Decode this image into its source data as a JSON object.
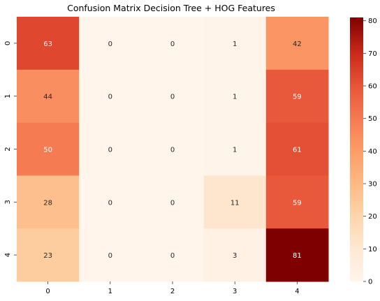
{
  "chart_data": {
    "type": "heatmap",
    "title": "Confusion Matrix Decision Tree + HOG Features",
    "xlabel": "",
    "ylabel": "",
    "x_tick_labels": [
      "0",
      "1",
      "2",
      "3",
      "4"
    ],
    "y_tick_labels": [
      "0",
      "1",
      "2",
      "3",
      "4"
    ],
    "values": [
      [
        63,
        0,
        0,
        1,
        42
      ],
      [
        44,
        0,
        0,
        1,
        59
      ],
      [
        50,
        0,
        0,
        1,
        61
      ],
      [
        28,
        0,
        0,
        11,
        59
      ],
      [
        23,
        0,
        0,
        3,
        81
      ]
    ],
    "colormap": "OrRd-like (Oranges to dark red)",
    "colorbar": {
      "vmin": 0,
      "vmax": 81,
      "ticks": [
        0,
        10,
        20,
        30,
        40,
        50,
        60,
        70,
        80
      ]
    },
    "grid": false,
    "annotations": true
  }
}
